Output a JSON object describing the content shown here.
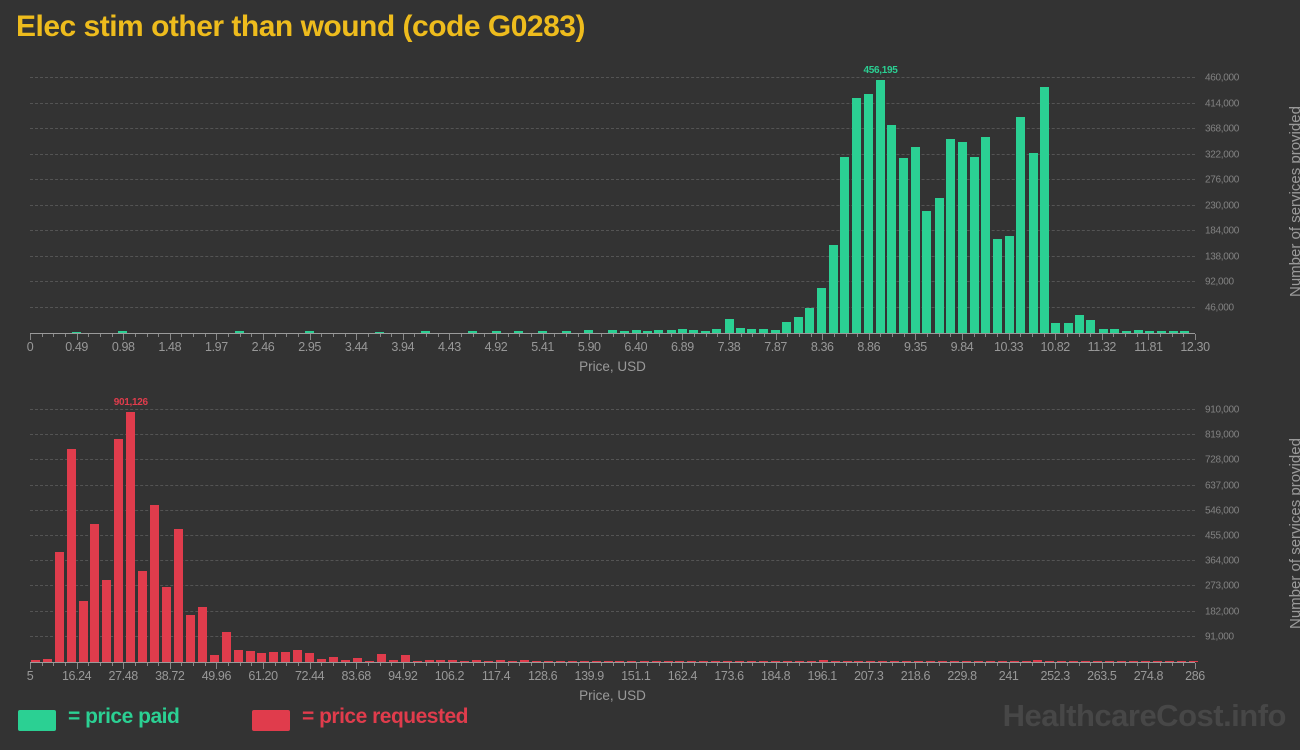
{
  "page": {
    "title": "Elec stim other than wound (code G0283)",
    "title_color": "#eebc1d",
    "background": "#333333",
    "watermark": "HealthcareCost.info"
  },
  "legend": {
    "paid_label": "= price paid",
    "paid_color": "#2bd093",
    "requested_label": "= price requested",
    "requested_color": "#e03c4c"
  },
  "chart_data": [
    {
      "type": "bar",
      "name": "price paid",
      "color": "#2bd093",
      "xlabel": "Price, USD",
      "ylabel": "Number of services provided",
      "xmin": 0,
      "xmax": 12.3,
      "ymax": 492500,
      "grid": "dashed-horizontal",
      "legend_position": "bottom-left",
      "peak_annotation": {
        "text": "456,195",
        "x": 8.98,
        "value": 456195
      },
      "x_tick_labels": [
        "0",
        "0.49",
        "0.98",
        "1.48",
        "1.97",
        "2.46",
        "2.95",
        "3.44",
        "3.94",
        "4.43",
        "4.92",
        "5.41",
        "5.90",
        "6.40",
        "6.89",
        "7.38",
        "7.87",
        "8.36",
        "8.86",
        "9.35",
        "9.84",
        "10.33",
        "10.82",
        "11.32",
        "11.81",
        "12.30"
      ],
      "y_ticks": [
        {
          "value": 46000,
          "label": "46,000"
        },
        {
          "value": 92000,
          "label": "92,000"
        },
        {
          "value": 138000,
          "label": "138,000"
        },
        {
          "value": 184000,
          "label": "184,000"
        },
        {
          "value": 230000,
          "label": "230,000"
        },
        {
          "value": 276000,
          "label": "276,000"
        },
        {
          "value": 322000,
          "label": "322,000"
        },
        {
          "value": 368000,
          "label": "368,000"
        },
        {
          "value": 414000,
          "label": "414,000"
        },
        {
          "value": 460000,
          "label": "460,000"
        }
      ],
      "bars": [
        [
          0.49,
          2500
        ],
        [
          0.98,
          3000
        ],
        [
          2.21,
          3000
        ],
        [
          2.95,
          3200
        ],
        [
          3.69,
          2500
        ],
        [
          4.18,
          3000
        ],
        [
          4.67,
          4000
        ],
        [
          4.92,
          3500
        ],
        [
          5.16,
          3200
        ],
        [
          5.41,
          4500
        ],
        [
          5.66,
          3500
        ],
        [
          5.9,
          5000
        ],
        [
          6.15,
          5000
        ],
        [
          6.28,
          4000
        ],
        [
          6.4,
          6000
        ],
        [
          6.52,
          4500
        ],
        [
          6.64,
          5500
        ],
        [
          6.77,
          5000
        ],
        [
          6.89,
          6500
        ],
        [
          7.01,
          5500
        ],
        [
          7.13,
          4500
        ],
        [
          7.25,
          6500
        ],
        [
          7.38,
          26000
        ],
        [
          7.5,
          9000
        ],
        [
          7.62,
          7500
        ],
        [
          7.74,
          8000
        ],
        [
          7.87,
          5500
        ],
        [
          7.99,
          20000
        ],
        [
          8.11,
          29000
        ],
        [
          8.23,
          45000
        ],
        [
          8.36,
          81000
        ],
        [
          8.48,
          158000
        ],
        [
          8.6,
          318000
        ],
        [
          8.73,
          424000
        ],
        [
          8.85,
          432000
        ],
        [
          8.98,
          456195
        ],
        [
          9.1,
          376000
        ],
        [
          9.22,
          316000
        ],
        [
          9.35,
          335000
        ],
        [
          9.47,
          220000
        ],
        [
          9.6,
          243000
        ],
        [
          9.72,
          350000
        ],
        [
          9.84,
          345000
        ],
        [
          9.97,
          317000
        ],
        [
          10.09,
          354000
        ],
        [
          10.21,
          170000
        ],
        [
          10.34,
          175000
        ],
        [
          10.46,
          390000
        ],
        [
          10.59,
          324000
        ],
        [
          10.71,
          443000
        ],
        [
          10.83,
          18000
        ],
        [
          10.96,
          18000
        ],
        [
          11.08,
          32000
        ],
        [
          11.2,
          23000
        ],
        [
          11.33,
          8000
        ],
        [
          11.45,
          7000
        ],
        [
          11.58,
          4000
        ],
        [
          11.7,
          5000
        ],
        [
          11.82,
          3500
        ],
        [
          11.95,
          4000
        ],
        [
          12.07,
          3000
        ],
        [
          12.19,
          4000
        ]
      ]
    },
    {
      "type": "bar",
      "name": "price requested",
      "color": "#e03c4c",
      "xlabel": "Price, USD",
      "ylabel": "Number of services provided",
      "xmin": 5,
      "xmax": 286,
      "ymax": 964000,
      "grid": "dashed-horizontal",
      "legend_position": "bottom-left",
      "peak_annotation": {
        "text": "901,126",
        "x": 29.3,
        "value": 901126
      },
      "x_tick_labels": [
        "5",
        "16.24",
        "27.48",
        "38.72",
        "49.96",
        "61.20",
        "72.44",
        "83.68",
        "94.92",
        "106.2",
        "117.4",
        "128.6",
        "139.9",
        "151.1",
        "162.4",
        "173.6",
        "184.8",
        "196.1",
        "207.3",
        "218.6",
        "229.8",
        "241",
        "252.3",
        "263.5",
        "274.8",
        "286"
      ],
      "y_ticks": [
        {
          "value": 91000,
          "label": "91,000"
        },
        {
          "value": 182000,
          "label": "182,000"
        },
        {
          "value": 273000,
          "label": "273,000"
        },
        {
          "value": 364000,
          "label": "364,000"
        },
        {
          "value": 455000,
          "label": "455,000"
        },
        {
          "value": 546000,
          "label": "546,000"
        },
        {
          "value": 637000,
          "label": "637,000"
        },
        {
          "value": 728000,
          "label": "728,000"
        },
        {
          "value": 819000,
          "label": "819,000"
        },
        {
          "value": 910000,
          "label": "910,000"
        }
      ],
      "bars": [
        [
          6.4,
          7000
        ],
        [
          9.2,
          12000
        ],
        [
          12.0,
          398000
        ],
        [
          14.9,
          770000
        ],
        [
          17.8,
          220000
        ],
        [
          20.6,
          497000
        ],
        [
          23.5,
          295000
        ],
        [
          26.4,
          807000
        ],
        [
          29.3,
          901126
        ],
        [
          32.1,
          328000
        ],
        [
          35.0,
          567000
        ],
        [
          37.9,
          272000
        ],
        [
          40.8,
          479000
        ],
        [
          43.7,
          170000
        ],
        [
          46.5,
          200000
        ],
        [
          49.4,
          24000
        ],
        [
          52.3,
          108000
        ],
        [
          55.2,
          43000
        ],
        [
          58.1,
          40000
        ],
        [
          60.9,
          34000
        ],
        [
          63.8,
          37000
        ],
        [
          66.7,
          37000
        ],
        [
          69.6,
          44000
        ],
        [
          72.5,
          32000
        ],
        [
          75.3,
          11000
        ],
        [
          78.2,
          18000
        ],
        [
          81.1,
          7000
        ],
        [
          84.0,
          15000
        ],
        [
          86.9,
          5000
        ],
        [
          89.7,
          30000
        ],
        [
          92.6,
          6000
        ],
        [
          95.5,
          26000
        ],
        [
          98.4,
          5000
        ],
        [
          101.3,
          7000
        ],
        [
          104.1,
          6000
        ],
        [
          107.0,
          8000
        ],
        [
          109.9,
          5000
        ],
        [
          112.8,
          6000
        ],
        [
          115.7,
          5000
        ],
        [
          118.5,
          7000
        ],
        [
          121.4,
          5000
        ],
        [
          124.3,
          6000
        ],
        [
          127.2,
          4000
        ],
        [
          130.1,
          5000
        ],
        [
          132.9,
          4000
        ],
        [
          135.8,
          5000
        ],
        [
          138.7,
          4000
        ],
        [
          141.6,
          5000
        ],
        [
          144.5,
          3500
        ],
        [
          147.3,
          4000
        ],
        [
          150.2,
          4500
        ],
        [
          153.1,
          3500
        ],
        [
          156.0,
          4000
        ],
        [
          158.9,
          3500
        ],
        [
          161.7,
          4000
        ],
        [
          164.6,
          3500
        ],
        [
          167.5,
          4500
        ],
        [
          170.4,
          3500
        ],
        [
          173.3,
          5000
        ],
        [
          176.1,
          3500
        ],
        [
          179.0,
          4000
        ],
        [
          181.9,
          3500
        ],
        [
          184.8,
          4000
        ],
        [
          187.7,
          3500
        ],
        [
          190.5,
          4000
        ],
        [
          193.4,
          3500
        ],
        [
          196.3,
          9000
        ],
        [
          199.2,
          3500
        ],
        [
          202.1,
          4000
        ],
        [
          204.9,
          3500
        ],
        [
          207.8,
          4000
        ],
        [
          210.7,
          3500
        ],
        [
          213.6,
          4000
        ],
        [
          216.5,
          3500
        ],
        [
          219.3,
          4000
        ],
        [
          222.2,
          3500
        ],
        [
          225.1,
          4000
        ],
        [
          228.0,
          3500
        ],
        [
          230.9,
          4000
        ],
        [
          233.7,
          3500
        ],
        [
          236.6,
          4000
        ],
        [
          239.5,
          3500
        ],
        [
          242.4,
          4000
        ],
        [
          245.3,
          3500
        ],
        [
          248.1,
          8000
        ],
        [
          251.0,
          4000
        ],
        [
          253.9,
          3500
        ],
        [
          256.8,
          3500
        ],
        [
          259.7,
          3500
        ],
        [
          262.5,
          3500
        ],
        [
          265.4,
          3500
        ],
        [
          268.3,
          3500
        ],
        [
          271.2,
          3500
        ],
        [
          274.1,
          4000
        ],
        [
          276.9,
          3500
        ],
        [
          279.8,
          4000
        ],
        [
          282.7,
          3500
        ],
        [
          285.6,
          3500
        ]
      ]
    }
  ]
}
